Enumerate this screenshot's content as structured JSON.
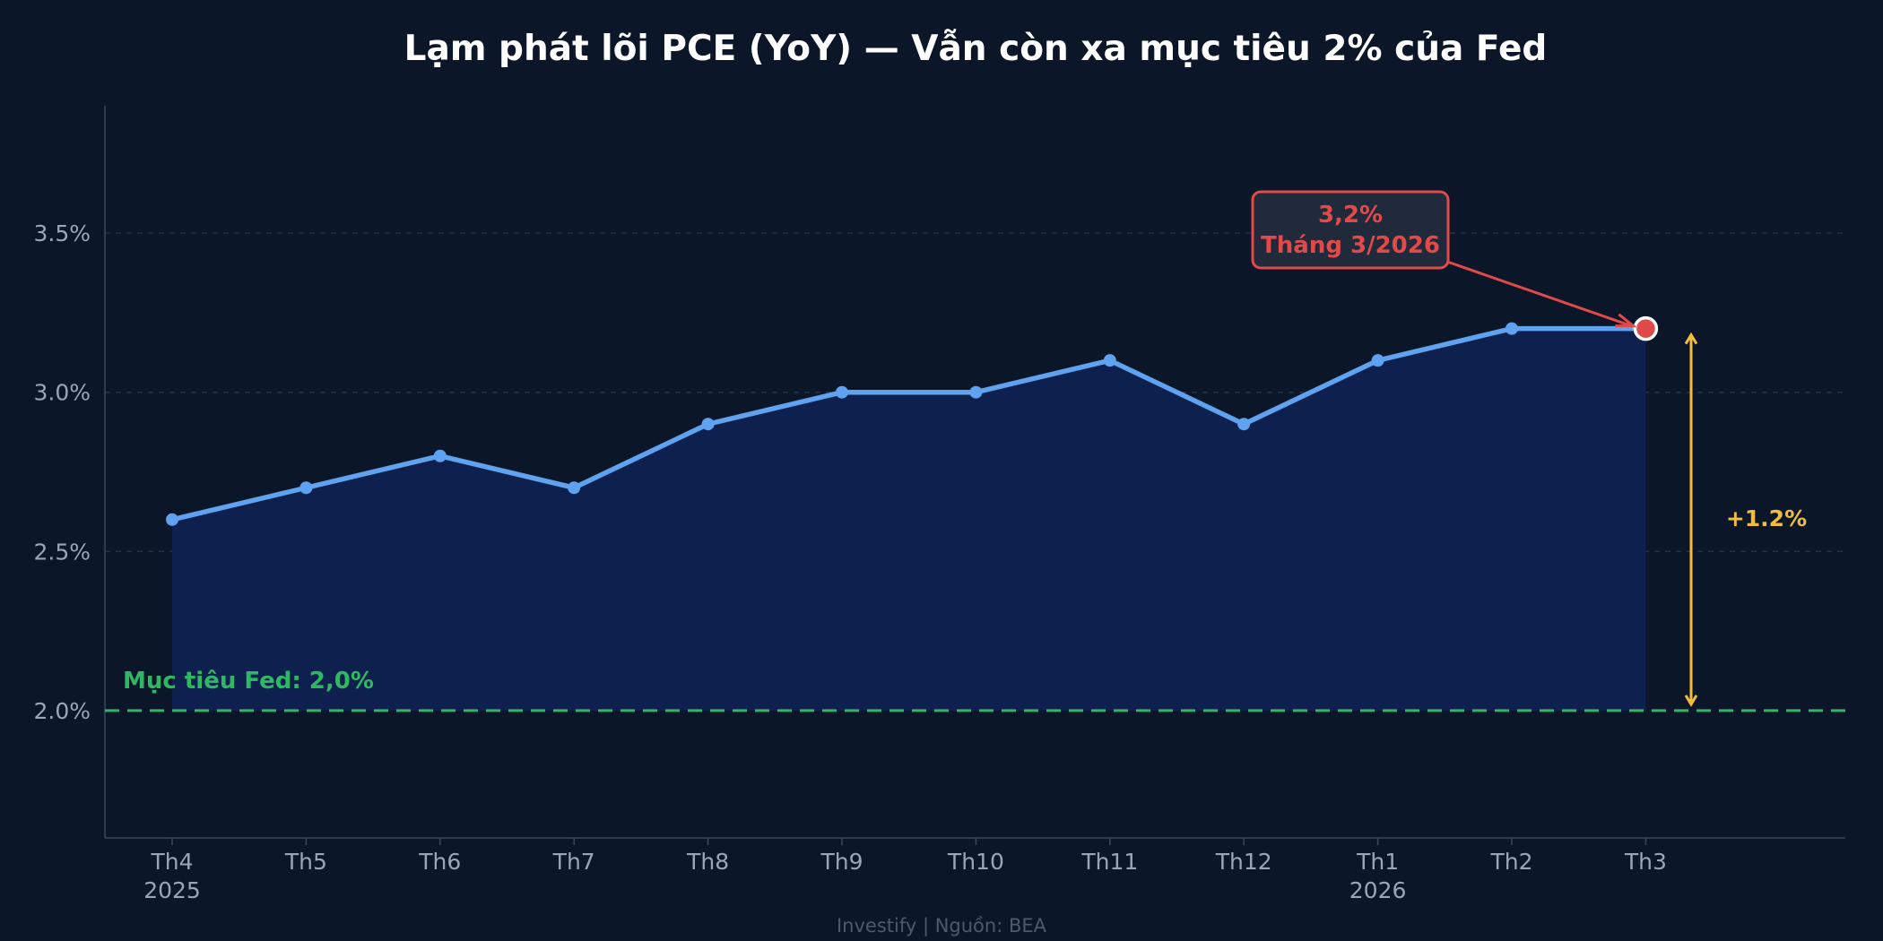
{
  "chart_data": {
    "type": "line",
    "title": "Lạm phát lõi PCE (YoY) — Vẫn còn xa mục tiêu 2% của Fed",
    "xlabel": "",
    "ylabel": "",
    "x_labels": [
      "Th4",
      "Th5",
      "Th6",
      "Th7",
      "Th8",
      "Th9",
      "Th10",
      "Th11",
      "Th12",
      "Th1",
      "Th2",
      "Th3"
    ],
    "x_year_labels": [
      "2025",
      "",
      "",
      "",
      "",
      "",
      "",
      "",
      "",
      "2026",
      "",
      ""
    ],
    "series": [
      {
        "values": [
          2.6,
          2.7,
          2.8,
          2.7,
          2.9,
          3.0,
          3.0,
          3.1,
          2.9,
          3.1,
          3.2,
          3.2
        ]
      }
    ],
    "ylim": [
      1.6,
      3.9
    ],
    "y_ticks": [
      2.0,
      2.5,
      3.0,
      3.5
    ],
    "y_tick_labels": [
      "2.0%",
      "2.5%",
      "3.0%",
      "3.5%"
    ],
    "grid": true,
    "target": {
      "value": 2.0,
      "label": "Mục tiêu Fed: 2,0%"
    },
    "callout": {
      "line1": "3,2%",
      "line2": "Tháng 3/2026",
      "point_index": 11
    },
    "gap_label": "+1.2%",
    "source": "Investify | Nguồn: BEA",
    "colors": {
      "background": "#0b1628",
      "line": "#5fa2f0",
      "area": "#0f2150",
      "target": "#2fb863",
      "highlight": "#e24a4a",
      "gap": "#f1bd3c",
      "axis_text": "#9aa6b8",
      "grid": "#22314a",
      "title": "#ffffff",
      "source": "#4d5a6e",
      "callout_bg": "#202a3a"
    }
  }
}
